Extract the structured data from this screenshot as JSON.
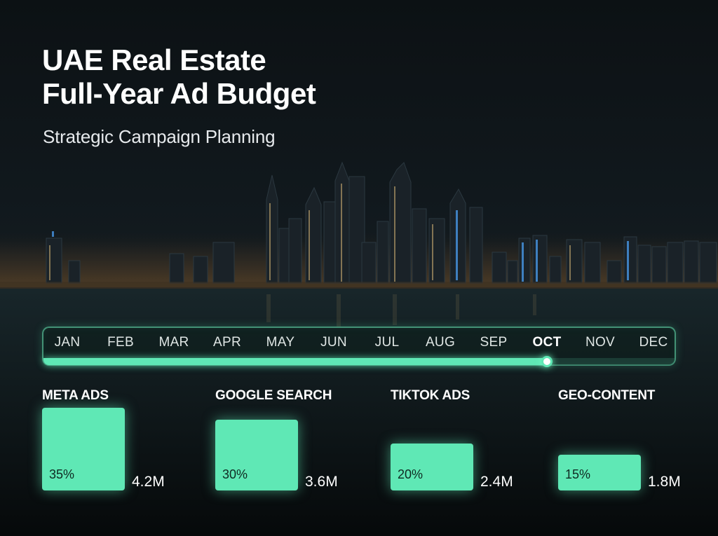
{
  "title_lines": [
    "UAE Real Estate",
    "Full-Year Ad Budget"
  ],
  "subtitle": "Strategic Campaign Planning",
  "colors": {
    "accent": "#5fe8b5",
    "background": "#07090b"
  },
  "timeline": {
    "months": [
      "JAN",
      "FEB",
      "MAR",
      "APR",
      "MAY",
      "JUN",
      "JUL",
      "AUG",
      "SEP",
      "OCT",
      "NOV",
      "DEC"
    ],
    "active_index": 9,
    "active_month": "OCT"
  },
  "chart_data": {
    "type": "bar",
    "title": "UAE Real Estate Full-Year Ad Budget",
    "subtitle": "Strategic Campaign Planning",
    "categories": [
      "META ADS",
      "GOOGLE SEARCH",
      "TIKTOK ADS",
      "GEO-CONTENT"
    ],
    "values": [
      35,
      30,
      20,
      15
    ],
    "value_labels": [
      "35%",
      "30%",
      "20%",
      "15%"
    ],
    "amounts": [
      "4.2M",
      "3.6M",
      "2.4M",
      "1.8M"
    ],
    "xlabel": "",
    "ylabel": "",
    "ylim": [
      0,
      35
    ],
    "grid": false,
    "legend": "none"
  }
}
